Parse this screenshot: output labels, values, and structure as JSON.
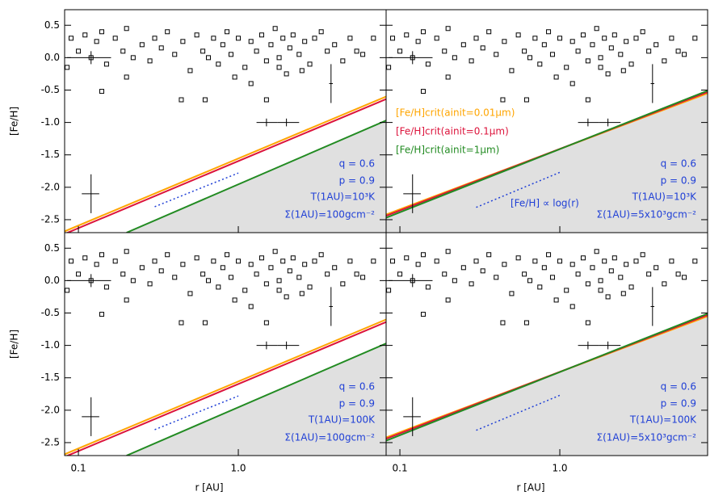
{
  "chart_data": {
    "type": "scatter",
    "xlabel": "r [AU]",
    "ylabel": "[Fe/H]",
    "log_x": true,
    "xlim": [
      0.082,
      8.4
    ],
    "ylim": [
      -2.7,
      0.74
    ],
    "xticks": [
      0.1,
      {
        "value": 1,
        "label": "1.0"
      }
    ],
    "yticks": [
      0.5,
      {
        "value": 0,
        "label": "0.0"
      },
      -0.5,
      {
        "value": -1,
        "label": "-1.0"
      },
      -1.5,
      {
        "value": -2,
        "label": "-2.0"
      },
      -2.5
    ],
    "stars": {
      "x": [
        0.085,
        0.09,
        0.1,
        0.11,
        0.12,
        0.13,
        0.14,
        0.15,
        0.17,
        0.19,
        0.2,
        0.22,
        0.25,
        0.28,
        0.3,
        0.33,
        0.36,
        0.4,
        0.45,
        0.5,
        0.55,
        0.6,
        0.65,
        0.7,
        0.75,
        0.8,
        0.85,
        0.9,
        1.0,
        1.1,
        1.2,
        1.3,
        1.4,
        1.5,
        1.6,
        1.7,
        1.8,
        1.9,
        2.0,
        2.1,
        2.2,
        2.4,
        2.6,
        2.8,
        3.0,
        3.3,
        3.6,
        4.0,
        4.5,
        5.0,
        5.5,
        6.0,
        7.0,
        0.62,
        0.14,
        0.44,
        1.5,
        0.2,
        1.2,
        2.5,
        0.95,
        1.8
      ],
      "y": [
        -0.15,
        0.3,
        0.1,
        0.35,
        0.0,
        0.25,
        0.4,
        -0.1,
        0.3,
        0.1,
        0.45,
        0.0,
        0.2,
        -0.05,
        0.3,
        0.15,
        0.4,
        0.05,
        0.25,
        -0.2,
        0.35,
        0.1,
        0.0,
        0.3,
        -0.1,
        0.2,
        0.4,
        0.05,
        0.3,
        -0.15,
        0.25,
        0.1,
        0.35,
        -0.05,
        0.2,
        0.45,
        0.0,
        0.3,
        -0.25,
        0.15,
        0.35,
        0.05,
        0.25,
        -0.1,
        0.3,
        0.4,
        0.1,
        0.2,
        -0.05,
        0.3,
        0.1,
        0.05,
        0.3,
        -0.65,
        -0.52,
        -0.65,
        -0.65,
        -0.3,
        -0.4,
        -0.2,
        -0.3,
        -0.15
      ]
    },
    "error_points": {
      "x": [
        0.12,
        1.5,
        2.0,
        0.12,
        3.8
      ],
      "y": [
        -2.1,
        -1.0,
        -1.0,
        0.0,
        -0.4
      ],
      "yerr": [
        0.3,
        0.06,
        0.06,
        0.1,
        0.3
      ],
      "xlo": [
        0.105,
        1.3,
        1.75,
        0.085,
        3.7
      ],
      "xhi": [
        0.135,
        1.75,
        2.4,
        0.16,
        3.9
      ]
    },
    "panels": [
      {
        "series": [
          {
            "color": "#ffa500",
            "x": [
              0.082,
              8.4
            ],
            "values": [
              -2.68,
              -0.6
            ]
          },
          {
            "color": "#dc143c",
            "x": [
              0.082,
              8.4
            ],
            "values": [
              -2.72,
              -0.64
            ]
          },
          {
            "color": "#228b22",
            "x": [
              0.2,
              8.4
            ],
            "values": [
              -2.7,
              -0.97
            ],
            "fill_below": "#e0e0e0"
          }
        ],
        "trend": {
          "x": [
            0.3,
            1.0
          ],
          "values": [
            -2.3,
            -1.78
          ]
        },
        "texts": [
          "q = 0.6",
          "p = 0.9",
          "T(1AU)=10³K",
          "Σ(1AU)=100gcm⁻²"
        ]
      },
      {
        "series": [
          {
            "name": "[Fe/H]crit(ainit=0.01μm)",
            "color": "#ffa500",
            "x": [
              0.082,
              8.4
            ],
            "values": [
              -2.42,
              -0.55
            ]
          },
          {
            "name": "[Fe/H]crit(ainit=0.1μm)",
            "color": "#dc143c",
            "x": [
              0.082,
              8.4
            ],
            "values": [
              -2.44,
              -0.53
            ]
          },
          {
            "name": "[Fe/H]crit(ainit=1μm)",
            "color": "#228b22",
            "x": [
              0.082,
              8.4
            ],
            "values": [
              -2.47,
              -0.51
            ],
            "fill_below": "#e0e0e0"
          }
        ],
        "trend": {
          "x": [
            0.3,
            1.0
          ],
          "values": [
            -2.31,
            -1.77
          ]
        },
        "note": "[Fe/H] ∝ log(r)",
        "texts": [
          "q = 0.6",
          "p = 0.9",
          "T(1AU)=10³K",
          "Σ(1AU)=5x10³gcm⁻²"
        ]
      },
      {
        "series": [
          {
            "color": "#ffa500",
            "x": [
              0.082,
              8.4
            ],
            "values": [
              -2.68,
              -0.6
            ]
          },
          {
            "color": "#dc143c",
            "x": [
              0.082,
              8.4
            ],
            "values": [
              -2.72,
              -0.64
            ]
          },
          {
            "color": "#228b22",
            "x": [
              0.2,
              8.4
            ],
            "values": [
              -2.7,
              -0.97
            ],
            "fill_below": "#e0e0e0"
          }
        ],
        "trend": {
          "x": [
            0.3,
            1.0
          ],
          "values": [
            -2.3,
            -1.78
          ]
        },
        "texts": [
          "q = 0.6",
          "p = 0.9",
          "T(1AU)=100K",
          "Σ(1AU)=100gcm⁻²"
        ]
      },
      {
        "series": [
          {
            "color": "#ffa500",
            "x": [
              0.082,
              8.4
            ],
            "values": [
              -2.42,
              -0.55
            ]
          },
          {
            "color": "#dc143c",
            "x": [
              0.082,
              8.4
            ],
            "values": [
              -2.44,
              -0.53
            ]
          },
          {
            "color": "#228b22",
            "x": [
              0.082,
              8.4
            ],
            "values": [
              -2.47,
              -0.51
            ],
            "fill_below": "#e0e0e0"
          }
        ],
        "trend": {
          "x": [
            0.3,
            1.0
          ],
          "values": [
            -2.31,
            -1.77
          ]
        },
        "texts": [
          "q = 0.6",
          "p = 0.9",
          "T(1AU)=100K",
          "Σ(1AU)=5x10³gcm⁻²"
        ]
      }
    ]
  }
}
